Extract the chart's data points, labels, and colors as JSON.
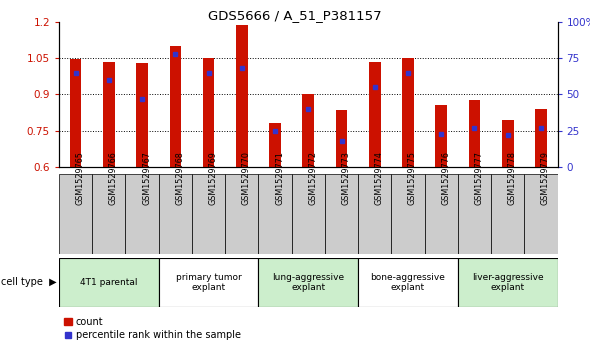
{
  "title": "GDS5666 / A_51_P381157",
  "samples": [
    "GSM1529765",
    "GSM1529766",
    "GSM1529767",
    "GSM1529768",
    "GSM1529769",
    "GSM1529770",
    "GSM1529771",
    "GSM1529772",
    "GSM1529773",
    "GSM1529774",
    "GSM1529775",
    "GSM1529776",
    "GSM1529777",
    "GSM1529778",
    "GSM1529779"
  ],
  "bar_heights": [
    1.047,
    1.035,
    1.03,
    1.1,
    1.05,
    1.185,
    0.78,
    0.9,
    0.835,
    1.035,
    1.05,
    0.855,
    0.875,
    0.795,
    0.84
  ],
  "percentile_ranks": [
    65,
    60,
    47,
    78,
    65,
    68,
    25,
    40,
    18,
    55,
    65,
    23,
    27,
    22,
    27
  ],
  "bar_color": "#cc1100",
  "dot_color": "#3333cc",
  "ylim_left": [
    0.6,
    1.2
  ],
  "ylim_right": [
    0,
    100
  ],
  "yticks_left": [
    0.6,
    0.75,
    0.9,
    1.05,
    1.2
  ],
  "yticks_right": [
    0,
    25,
    50,
    75,
    100
  ],
  "ytick_labels_right": [
    "0",
    "25",
    "50",
    "75",
    "100%"
  ],
  "groups": [
    {
      "label": "4T1 parental",
      "start": 0,
      "end": 3,
      "color": "#cceecc"
    },
    {
      "label": "primary tumor\nexplant",
      "start": 3,
      "end": 6,
      "color": "#ffffff"
    },
    {
      "label": "lung-aggressive\nexplant",
      "start": 6,
      "end": 9,
      "color": "#cceecc"
    },
    {
      "label": "bone-aggressive\nexplant",
      "start": 9,
      "end": 12,
      "color": "#ffffff"
    },
    {
      "label": "liver-aggressive\nexplant",
      "start": 12,
      "end": 15,
      "color": "#cceecc"
    }
  ],
  "xtick_bg_color": "#cccccc",
  "bar_width": 0.35
}
